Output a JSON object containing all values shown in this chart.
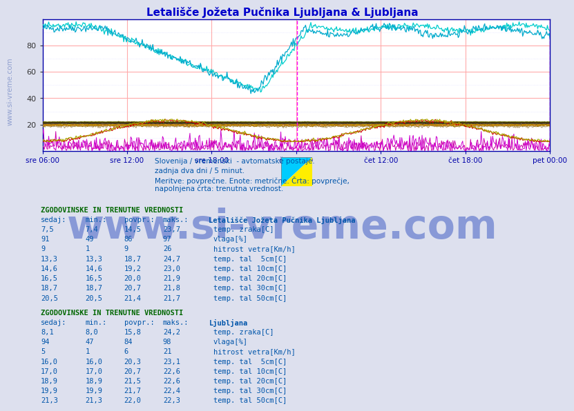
{
  "title": "Letališče Jožeta Pučnika Ljubljana & Ljubljana",
  "title_color": "#0000cc",
  "background_color": "#dde0ee",
  "plot_bg_color": "#ffffff",
  "ylim": [
    0,
    100
  ],
  "yticks": [
    20,
    40,
    60,
    80
  ],
  "x_labels": [
    "sre 06:00",
    "sre 12:00",
    "sre 18:00",
    "čet 06:00",
    "čet 12:00",
    "čet 18:00",
    "pet 00:00"
  ],
  "watermark_side": "www.si-vreme.com",
  "watermark_big": "www.si-vreme.com",
  "subtitle1": "Slovenija / vremenski  - avtomatske postaje.",
  "subtitle2": "zadnja dva dni / 5 minut.",
  "subtitle3": "Meritve: povprečne. Enote: metrične. Črta: povprečje,",
  "subtitle4": "napolnjena črta: trenutna vrednost.",
  "station1_title": "Letališče Jožeta Pučnika Ljubljana",
  "station2_title": "Ljubljana",
  "table_header": "ZGODOVINSKE IN TRENUTNE VREDNOSTI",
  "col_headers": [
    "sedaj:",
    "min.:",
    "povpr.:",
    "maks.:"
  ],
  "station1_data": [
    {
      "label": "temp. zraka[C]",
      "color": "#cc0000",
      "sedaj": "7,5",
      "min": "7,4",
      "povpr": "14,5",
      "maks": "23,7"
    },
    {
      "label": "vlaga[%]",
      "color": "#00aacc",
      "sedaj": "91",
      "min": "49",
      "povpr": "86",
      "maks": "97"
    },
    {
      "label": "hitrost vetra[Km/h]",
      "color": "#cc00cc",
      "sedaj": "9",
      "min": "1",
      "povpr": "9",
      "maks": "26"
    },
    {
      "label": "temp. tal  5cm[C]",
      "color": "#bbaa88",
      "sedaj": "13,3",
      "min": "13,3",
      "povpr": "18,7",
      "maks": "24,7"
    },
    {
      "label": "temp. tal 10cm[C]",
      "color": "#aa7700",
      "sedaj": "14,6",
      "min": "14,6",
      "povpr": "19,2",
      "maks": "23,0"
    },
    {
      "label": "temp. tal 20cm[C]",
      "color": "#cc8800",
      "sedaj": "16,5",
      "min": "16,5",
      "povpr": "20,0",
      "maks": "21,9"
    },
    {
      "label": "temp. tal 30cm[C]",
      "color": "#554433",
      "sedaj": "18,7",
      "min": "18,7",
      "povpr": "20,7",
      "maks": "21,8"
    },
    {
      "label": "temp. tal 50cm[C]",
      "color": "#332211",
      "sedaj": "20,5",
      "min": "20,5",
      "povpr": "21,4",
      "maks": "21,7"
    }
  ],
  "station2_data": [
    {
      "label": "temp. zraka[C]",
      "color": "#aaaa00",
      "sedaj": "8,1",
      "min": "8,0",
      "povpr": "15,8",
      "maks": "24,2"
    },
    {
      "label": "vlaga[%]",
      "color": "#00cccc",
      "sedaj": "94",
      "min": "47",
      "povpr": "84",
      "maks": "98"
    },
    {
      "label": "hitrost vetra[Km/h]",
      "color": "#cc00aa",
      "sedaj": "5",
      "min": "1",
      "povpr": "6",
      "maks": "21"
    },
    {
      "label": "temp. tal  5cm[C]",
      "color": "#aacc00",
      "sedaj": "16,0",
      "min": "16,0",
      "povpr": "20,3",
      "maks": "23,1"
    },
    {
      "label": "temp. tal 10cm[C]",
      "color": "#88aa00",
      "sedaj": "17,0",
      "min": "17,0",
      "povpr": "20,7",
      "maks": "22,6"
    },
    {
      "label": "temp. tal 20cm[C]",
      "color": "#aaaa00",
      "sedaj": "18,9",
      "min": "18,9",
      "povpr": "21,5",
      "maks": "22,6"
    },
    {
      "label": "temp. tal 30cm[C]",
      "color": "#888800",
      "sedaj": "19,9",
      "min": "19,9",
      "povpr": "21,7",
      "maks": "22,4"
    },
    {
      "label": "temp. tal 50cm[C]",
      "color": "#666600",
      "sedaj": "21,3",
      "min": "21,3",
      "povpr": "22,0",
      "maks": "22,3"
    }
  ],
  "grid_color_major": "#ffaaaa",
  "grid_color_minor": "#ddddff",
  "axis_color": "#0000aa",
  "n_points": 576
}
